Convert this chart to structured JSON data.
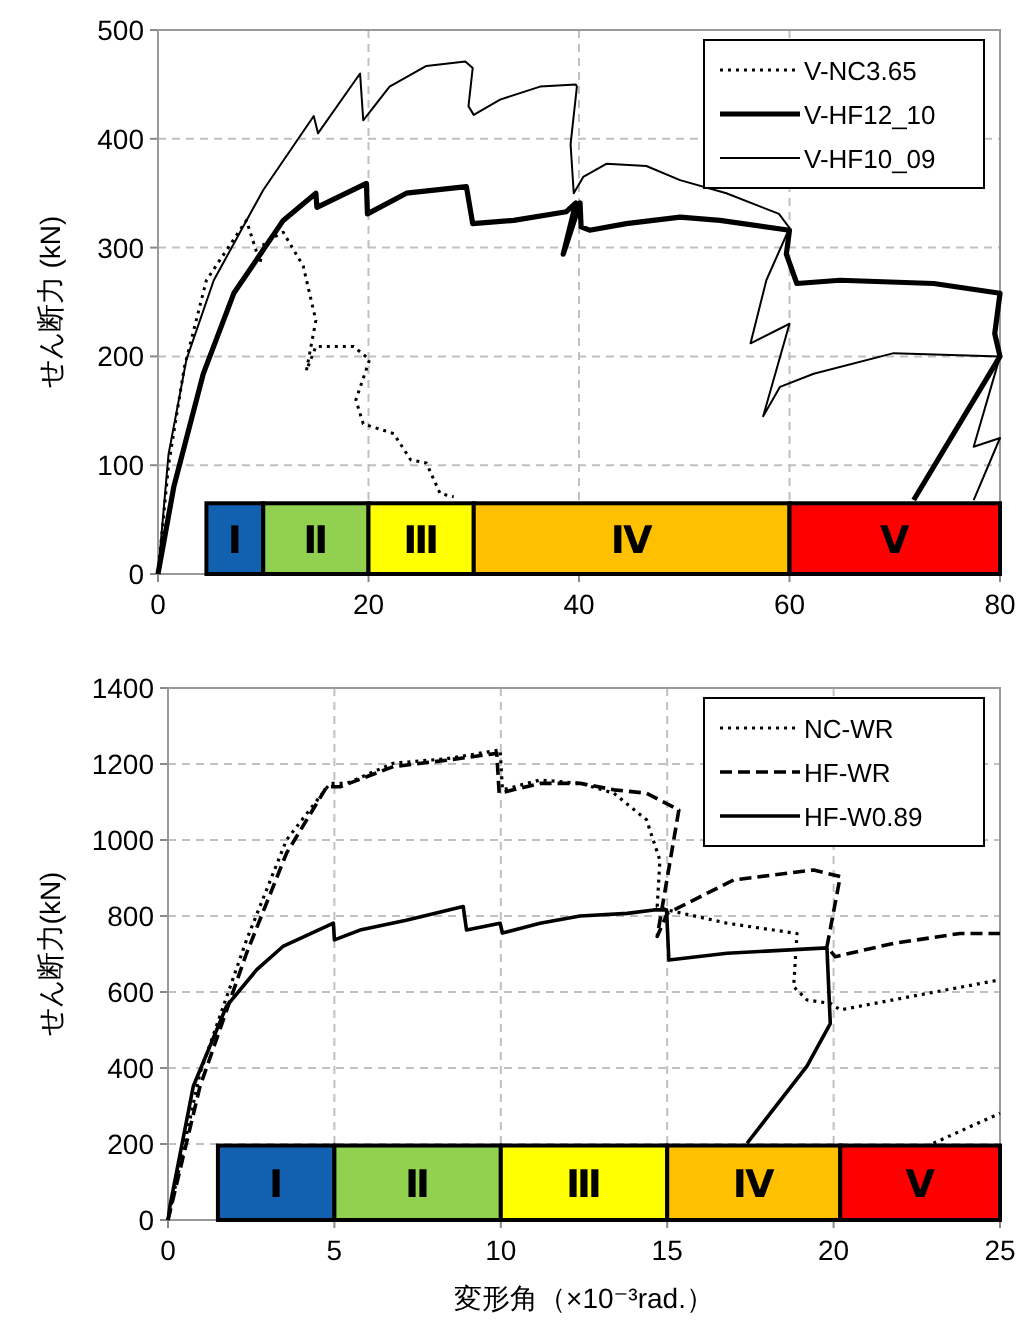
{
  "chart_data": [
    {
      "type": "line",
      "ylabel": "せん断力 (kN)",
      "xlim": [
        0,
        80
      ],
      "ylim": [
        0,
        500
      ],
      "xticks": [
        0,
        20,
        40,
        60,
        80
      ],
      "yticks": [
        0,
        100,
        200,
        300,
        400,
        500
      ],
      "grid": true,
      "legend": "top right",
      "series": [
        {
          "name": "V-NC3.65",
          "color": "#000000",
          "line_style": "dotted",
          "x": [
            0,
            1,
            2.5,
            4.6,
            8.4,
            9.7,
            10.1,
            11.9,
            13.8,
            15,
            14.1,
            15,
            18.6,
            20.1,
            18.8,
            19.5,
            22.4,
            24,
            25.5,
            26.8,
            28.1
          ],
          "values": [
            0,
            100,
            190,
            270,
            325,
            286,
            305,
            314,
            283,
            233,
            187,
            209,
            209,
            197,
            160,
            138,
            129,
            105,
            102,
            74,
            71
          ]
        },
        {
          "name": "V-HF12_10",
          "color": "#000000",
          "line_style": "solid",
          "x": [
            0,
            1.5,
            4.3,
            7.2,
            11.9,
            15,
            15.1,
            19.8,
            19.9,
            23.6,
            29.3,
            29.9,
            33.8,
            38.8,
            39.7,
            38.5,
            40.1,
            40.2,
            41,
            44.5,
            49.6,
            53.4,
            60,
            59.7,
            60.7,
            64.8,
            73.7,
            80,
            79.5,
            80,
            71.8
          ],
          "values": [
            0,
            80,
            184,
            258,
            325,
            350,
            337,
            359,
            331,
            350,
            356,
            322,
            325,
            333,
            341,
            294,
            341,
            319,
            316,
            322,
            328,
            325,
            316,
            294,
            267,
            270,
            267,
            258,
            221,
            200,
            68
          ]
        },
        {
          "name": "V-HF10_09",
          "color": "#000000",
          "line_style": "solid",
          "x": [
            0,
            1,
            2.7,
            5.3,
            10,
            14.8,
            15.2,
            19.2,
            19.5,
            22,
            25.5,
            29.2,
            29.9,
            29.5,
            30,
            32.5,
            36.3,
            39.7,
            39.8,
            39.2,
            39.5,
            40.4,
            42.6,
            46.4,
            49.6,
            54,
            59,
            60,
            57.8,
            56.3,
            60,
            57.5,
            59.1,
            62.3,
            69.9,
            80,
            77.5,
            80,
            77.5
          ],
          "values": [
            0,
            110,
            197,
            270,
            353,
            421,
            405,
            460,
            417,
            448,
            467,
            471,
            465,
            430,
            422,
            436,
            448,
            450,
            448,
            395,
            350,
            365,
            377,
            375,
            362,
            350,
            331,
            318,
            270,
            212,
            230,
            145,
            172,
            184,
            203,
            200,
            117,
            125,
            68
          ]
        }
      ],
      "bands": [
        {
          "axis": "x",
          "from": 4.6,
          "to": 10,
          "label": "Ⅰ",
          "color": "#1261b0"
        },
        {
          "axis": "x",
          "from": 10,
          "to": 20,
          "label": "Ⅱ",
          "color": "#92d050"
        },
        {
          "axis": "x",
          "from": 20,
          "to": 30,
          "label": "Ⅲ",
          "color": "#ffff00"
        },
        {
          "axis": "x",
          "from": 30,
          "to": 60,
          "label": "Ⅳ",
          "color": "#ffc000"
        },
        {
          "axis": "x",
          "from": 60,
          "to": 80,
          "label": "Ⅴ",
          "color": "#ff0000"
        }
      ]
    },
    {
      "type": "line",
      "ylabel": "せん断力(kN)",
      "xlabel": "変形角（×10⁻³rad.）",
      "xlim": [
        0,
        25
      ],
      "ylim": [
        0,
        1400
      ],
      "xticks": [
        0,
        5,
        10,
        15,
        20,
        25
      ],
      "yticks": [
        0,
        200,
        400,
        600,
        800,
        1000,
        1200,
        1400
      ],
      "grid": true,
      "legend": "top right",
      "series": [
        {
          "name": "NC-WR",
          "color": "#000000",
          "line_style": "dotted",
          "x": [
            0,
            0.96,
            2.36,
            3.56,
            4.87,
            5.37,
            6.77,
            8.37,
            9.98,
            10.05,
            11.18,
            12.4,
            13.4,
            14.38,
            14.78,
            14.7,
            15,
            16.8,
            18.9,
            18.8,
            19.2,
            19.9,
            20.2,
            22.8,
            25,
            24,
            23,
            25
          ],
          "values": [
            0,
            386,
            737,
            1000,
            1149,
            1149,
            1202,
            1214,
            1237,
            1132,
            1158,
            1149,
            1123,
            1053,
            947,
            825,
            816,
            781,
            754,
            614,
            579,
            570,
            553,
            596,
            632,
            null,
            202,
            281
          ]
        },
        {
          "name": "HF-WR",
          "color": "#000000",
          "line_style": "dashed",
          "x": [
            0,
            0.96,
            2.36,
            3.56,
            4.77,
            5.17,
            6.77,
            8.37,
            9.88,
            9.95,
            11.18,
            12.4,
            13.4,
            14.38,
            15.35,
            14.7,
            15,
            17,
            19.4,
            20.2,
            19.8,
            20.05,
            21.8,
            23.8,
            25
          ],
          "values": [
            0,
            351,
            702,
            965,
            1140,
            1140,
            1193,
            1210,
            1228,
            1123,
            1149,
            1149,
            1132,
            1123,
            1079,
            746,
            807,
            895,
            921,
            904,
            719,
            693,
            728,
            754,
            754
          ]
        },
        {
          "name": "HF-W0.89",
          "color": "#000000",
          "line_style": "solid",
          "x": [
            0,
            0.06,
            0.76,
            1.76,
            2.66,
            3.47,
            4.97,
            5.0,
            5.77,
            7.16,
            8.87,
            8.97,
            9.98,
            10.05,
            11.18,
            12.38,
            13.8,
            14.6,
            14.98,
            15.05,
            16.8,
            19.8,
            19.9,
            19.2,
            17.4
          ],
          "values": [
            0,
            37,
            352,
            563,
            658,
            721,
            781,
            737,
            763,
            789,
            825,
            763,
            781,
            755,
            781,
            800,
            807,
            816,
            816,
            684,
            702,
            716,
            517,
            405,
            202
          ]
        }
      ],
      "bands": [
        {
          "axis": "x",
          "from": 1.5,
          "to": 5,
          "label": "Ⅰ",
          "color": "#1261b0"
        },
        {
          "axis": "x",
          "from": 5,
          "to": 10,
          "label": "Ⅱ",
          "color": "#92d050"
        },
        {
          "axis": "x",
          "from": 10,
          "to": 15,
          "label": "Ⅲ",
          "color": "#ffff00"
        },
        {
          "axis": "x",
          "from": 15,
          "to": 20.2,
          "label": "Ⅳ",
          "color": "#ffc000"
        },
        {
          "axis": "x",
          "from": 20.2,
          "to": 25,
          "label": "Ⅴ",
          "color": "#ff0000"
        }
      ]
    }
  ]
}
